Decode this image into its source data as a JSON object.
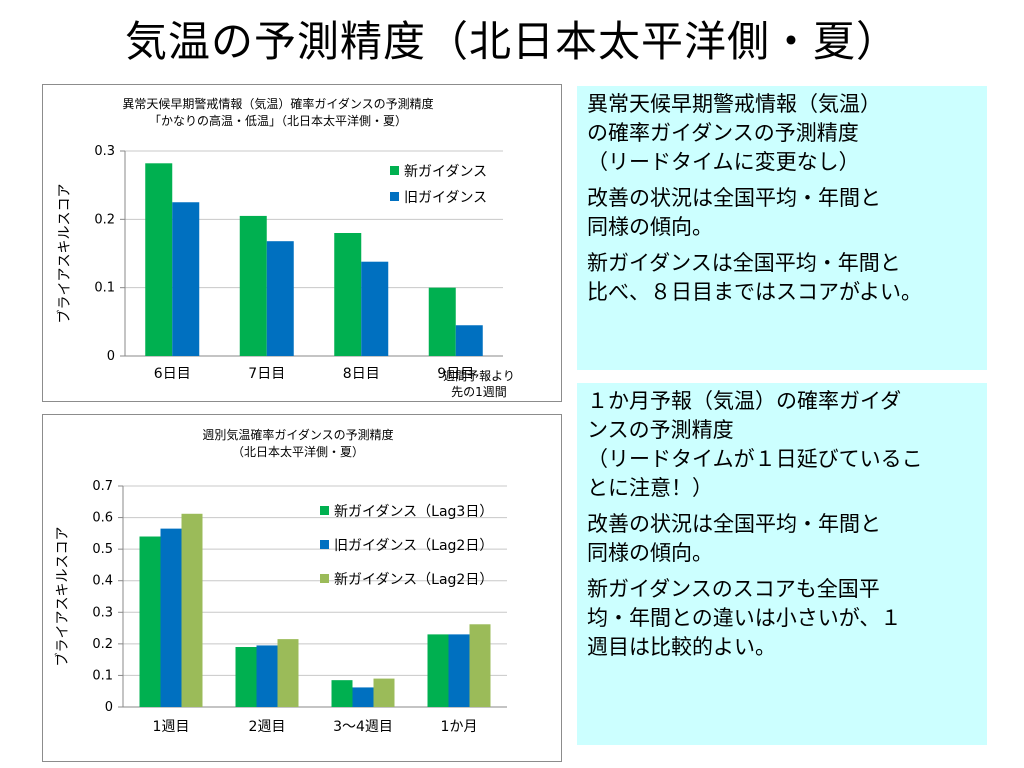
{
  "page": {
    "title": "気温の予測精度（北日本太平洋側・夏）",
    "note_lines": [
      "週間予報より",
      "先の1週間"
    ]
  },
  "panels": {
    "top": [
      [
        "異常天候早期警戒情報（気温）",
        "の確率ガイダンスの予測精度",
        "（リードタイムに変更なし）"
      ],
      [
        "改善の状況は全国平均・年間と",
        "同様の傾向。"
      ],
      [
        "新ガイダンスは全国平均・年間と",
        "比べ、８日目まではスコアがよい。"
      ]
    ],
    "bottom": [
      [
        "１か月予報（気温）の確率ガイダ",
        "ンスの予測精度",
        "（リードタイムが１日延びているこ",
        "とに注意！）"
      ],
      [
        "改善の状況は全国平均・年間と",
        "同様の傾向。"
      ],
      [
        "新ガイダンスのスコアも全国平",
        "均・年間との違いは小さいが、１",
        "週目は比較的よい。"
      ]
    ]
  },
  "chart_data": [
    {
      "type": "bar",
      "title": [
        "異常天候早期警戒情報（気温）確率ガイダンスの予測精度",
        "「かなりの高温・低温」（北日本太平洋側・夏）"
      ],
      "ylabel": "ブライアスキルスコア",
      "ylim": [
        0,
        0.3
      ],
      "yticks": [
        0,
        0.1,
        0.2,
        0.3
      ],
      "ytick_labels": [
        "0",
        "0.1",
        "0.2",
        "0.3"
      ],
      "grid": true,
      "legend": "top-right",
      "categories": [
        "6日目",
        "7日目",
        "8日目",
        "9日目"
      ],
      "series": [
        {
          "name": "新ガイダンス",
          "color": "#00b050",
          "values": [
            0.282,
            0.205,
            0.18,
            0.1
          ]
        },
        {
          "name": "旧ガイダンス",
          "color": "#0070c0",
          "values": [
            0.225,
            0.168,
            0.138,
            0.045
          ]
        }
      ]
    },
    {
      "type": "bar",
      "title": [
        "週別気温確率ガイダンスの予測精度",
        "（北日本太平洋側・夏）"
      ],
      "ylabel": "ブライアスキルスコア",
      "ylim": [
        0,
        0.7
      ],
      "yticks": [
        0,
        0.1,
        0.2,
        0.3,
        0.4,
        0.5,
        0.6,
        0.7
      ],
      "ytick_labels": [
        "0",
        "0.1",
        "0.2",
        "0.3",
        "0.4",
        "0.5",
        "0.6",
        "0.7"
      ],
      "grid": true,
      "legend": "top-right",
      "categories": [
        "1週目",
        "2週目",
        "3～4週目",
        "1か月"
      ],
      "series": [
        {
          "name": "新ガイダンス（Lag3日）",
          "color": "#00b050",
          "values": [
            0.54,
            0.19,
            0.085,
            0.23
          ]
        },
        {
          "name": "旧ガイダンス（Lag2日）",
          "color": "#0070c0",
          "values": [
            0.565,
            0.195,
            0.062,
            0.23
          ]
        },
        {
          "name": "新ガイダンス（Lag2日）",
          "color": "#9bbb59",
          "values": [
            0.612,
            0.215,
            0.09,
            0.262
          ]
        }
      ]
    }
  ]
}
